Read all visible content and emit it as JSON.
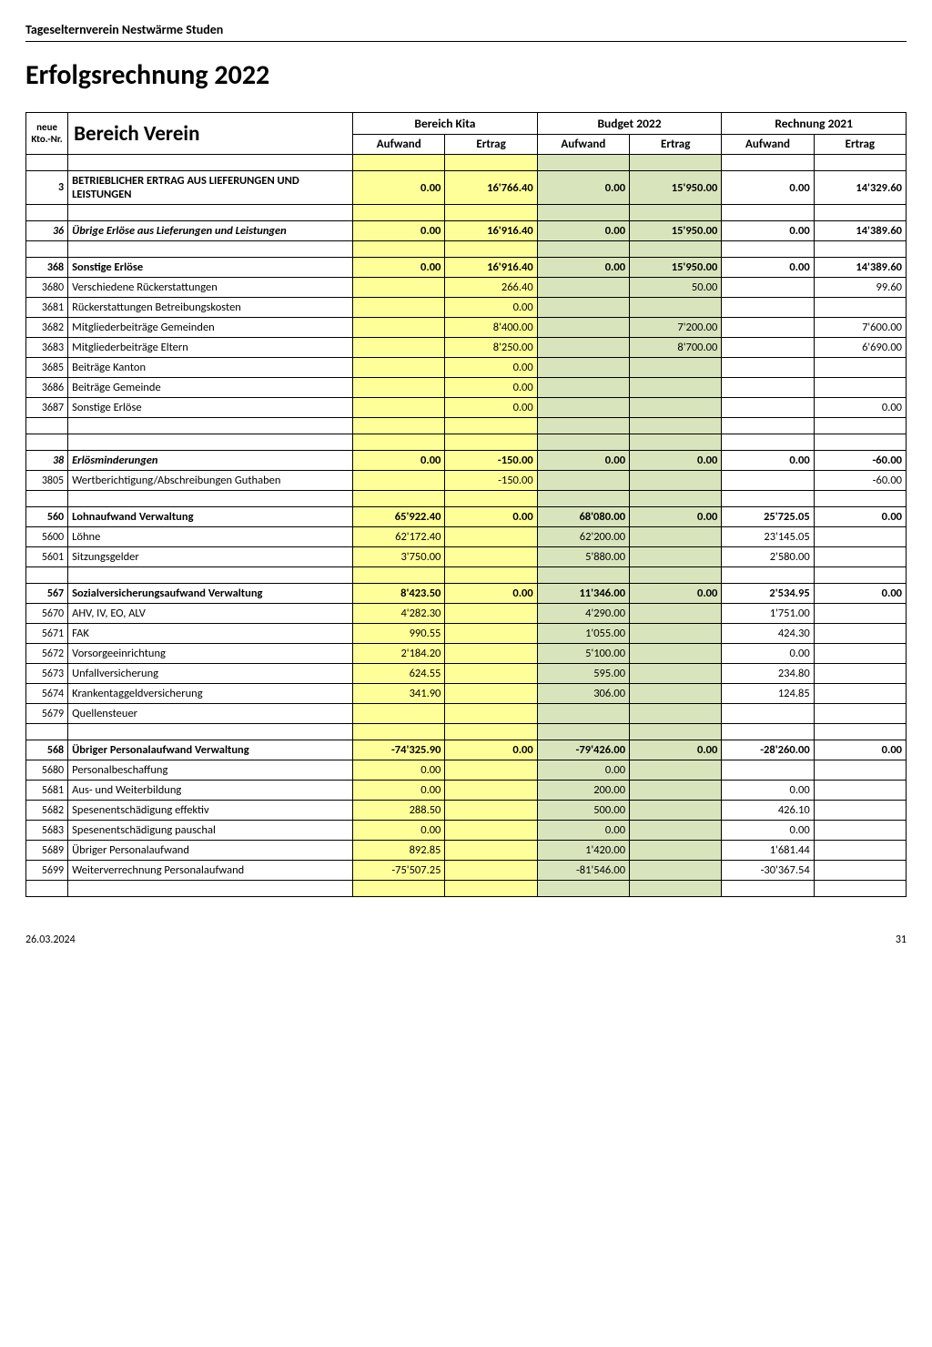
{
  "header": {
    "org": "Tageselternverein Nestwärme Studen",
    "title": "Erfolgsrechnung 2022"
  },
  "table": {
    "head": {
      "kto_line1": "neue",
      "kto_line2": "Kto.-Nr.",
      "main": "Bereich Verein",
      "groups": [
        "Bereich Kita",
        "Budget 2022",
        "Rechnung 2021"
      ],
      "sub_aufwand": "Aufwand",
      "sub_ertrag": "Ertrag"
    },
    "rows": [
      {
        "type": "spacer"
      },
      {
        "type": "section",
        "kto": "3",
        "desc": "BETRIEBLICHER ERTRAG AUS LIEFERUNGEN UND LEISTUNGEN",
        "bk_a": "0.00",
        "bk_e": "16'766.40",
        "bu_a": "0.00",
        "bu_e": "15'950.00",
        "r_a": "0.00",
        "r_e": "14'329.60",
        "tall": true,
        "caps": true
      },
      {
        "type": "spacer"
      },
      {
        "type": "section",
        "kto": "36",
        "desc": "Übrige Erlöse aus Lieferungen und Leistungen",
        "italic": true,
        "bk_a": "0.00",
        "bk_e": "16'916.40",
        "bu_a": "0.00",
        "bu_e": "15'950.00",
        "r_a": "0.00",
        "r_e": "14'389.60"
      },
      {
        "type": "spacer"
      },
      {
        "type": "section",
        "kto": "368",
        "desc": "Sonstige Erlöse",
        "bk_a": "0.00",
        "bk_e": "16'916.40",
        "bu_a": "0.00",
        "bu_e": "15'950.00",
        "r_a": "0.00",
        "r_e": "14'389.60"
      },
      {
        "type": "row",
        "kto": "3680",
        "desc": "Verschiedene Rückerstattungen",
        "bk_e": "266.40",
        "bu_e": "50.00",
        "r_e": "99.60"
      },
      {
        "type": "row",
        "kto": "3681",
        "desc": "Rückerstattungen Betreibungskosten",
        "bk_e": "0.00"
      },
      {
        "type": "row",
        "kto": "3682",
        "desc": "Mitgliederbeiträge Gemeinden",
        "bk_e": "8'400.00",
        "bu_e": "7'200.00",
        "r_e": "7'600.00"
      },
      {
        "type": "row",
        "kto": "3683",
        "desc": "Mitgliederbeiträge Eltern",
        "bk_e": "8'250.00",
        "bu_e": "8'700.00",
        "r_e": "6'690.00"
      },
      {
        "type": "row",
        "kto": "3685",
        "desc": "Beiträge Kanton",
        "bk_e": "0.00"
      },
      {
        "type": "row",
        "kto": "3686",
        "desc": "Beiträge Gemeinde",
        "bk_e": "0.00"
      },
      {
        "type": "row",
        "kto": "3687",
        "desc": "Sonstige Erlöse",
        "bk_e": "0.00",
        "r_e": "0.00"
      },
      {
        "type": "spacer"
      },
      {
        "type": "spacer"
      },
      {
        "type": "section",
        "kto": "38",
        "desc": "Erlösminderungen",
        "italic": true,
        "bk_a": "0.00",
        "bk_e": "-150.00",
        "bu_a": "0.00",
        "bu_e": "0.00",
        "r_a": "0.00",
        "r_e": "-60.00"
      },
      {
        "type": "row",
        "kto": "3805",
        "desc": "Wertberichtigung/Abschreibungen Guthaben",
        "bk_e": "-150.00",
        "r_e": "-60.00"
      },
      {
        "type": "spacer"
      },
      {
        "type": "section",
        "kto": "560",
        "desc": "Lohnaufwand Verwaltung",
        "bk_a": "65'922.40",
        "bk_e": "0.00",
        "bu_a": "68'080.00",
        "bu_e": "0.00",
        "r_a": "25'725.05",
        "r_e": "0.00"
      },
      {
        "type": "row",
        "kto": "5600",
        "desc": "Löhne",
        "bk_a": "62'172.40",
        "bu_a": "62'200.00",
        "r_a": "23'145.05"
      },
      {
        "type": "row",
        "kto": "5601",
        "desc": "Sitzungsgelder",
        "bk_a": "3'750.00",
        "bu_a": "5'880.00",
        "r_a": "2'580.00"
      },
      {
        "type": "spacer"
      },
      {
        "type": "section",
        "kto": "567",
        "desc": "Sozialversicherungsaufwand Verwaltung",
        "bk_a": "8'423.50",
        "bk_e": "0.00",
        "bu_a": "11'346.00",
        "bu_e": "0.00",
        "r_a": "2'534.95",
        "r_e": "0.00"
      },
      {
        "type": "row",
        "kto": "5670",
        "desc": "AHV, IV, EO, ALV",
        "bk_a": "4'282.30",
        "bu_a": "4'290.00",
        "r_a": "1'751.00"
      },
      {
        "type": "row",
        "kto": "5671",
        "desc": "FAK",
        "bk_a": "990.55",
        "bu_a": "1'055.00",
        "r_a": "424.30"
      },
      {
        "type": "row",
        "kto": "5672",
        "desc": "Vorsorgeeinrichtung",
        "bk_a": "2'184.20",
        "bu_a": "5'100.00",
        "r_a": "0.00"
      },
      {
        "type": "row",
        "kto": "5673",
        "desc": "Unfallversicherung",
        "bk_a": "624.55",
        "bu_a": "595.00",
        "r_a": "234.80"
      },
      {
        "type": "row",
        "kto": "5674",
        "desc": "Krankentaggeldversicherung",
        "bk_a": "341.90",
        "bu_a": "306.00",
        "r_a": "124.85"
      },
      {
        "type": "row",
        "kto": "5679",
        "desc": "Quellensteuer"
      },
      {
        "type": "spacer"
      },
      {
        "type": "section",
        "kto": "568",
        "desc": "Übriger Personalaufwand Verwaltung",
        "bk_a": "-74'325.90",
        "bk_e": "0.00",
        "bu_a": "-79'426.00",
        "bu_e": "0.00",
        "r_a": "-28'260.00",
        "r_e": "0.00"
      },
      {
        "type": "row",
        "kto": "5680",
        "desc": "Personalbeschaffung",
        "bk_a": "0.00",
        "bu_a": "0.00"
      },
      {
        "type": "row",
        "kto": "5681",
        "desc": "Aus- und Weiterbildung",
        "bk_a": "0.00",
        "bu_a": "200.00",
        "r_a": "0.00"
      },
      {
        "type": "row",
        "kto": "5682",
        "desc": "Spesenentschädigung effektiv",
        "bk_a": "288.50",
        "bu_a": "500.00",
        "r_a": "426.10"
      },
      {
        "type": "row",
        "kto": "5683",
        "desc": "Spesenentschädigung pauschal",
        "bk_a": "0.00",
        "bu_a": "0.00",
        "r_a": "0.00"
      },
      {
        "type": "row",
        "kto": "5689",
        "desc": "Übriger Personalaufwand",
        "bk_a": "892.85",
        "bu_a": "1'420.00",
        "r_a": "1'681.44"
      },
      {
        "type": "row",
        "kto": "5699",
        "desc": "Weiterverrechnung Personalaufwand",
        "bk_a": "-75'507.25",
        "bu_a": "-81'546.00",
        "r_a": "-30'367.54"
      },
      {
        "type": "spacer"
      }
    ]
  },
  "footer": {
    "date": "26.03.2024",
    "page": "31"
  }
}
